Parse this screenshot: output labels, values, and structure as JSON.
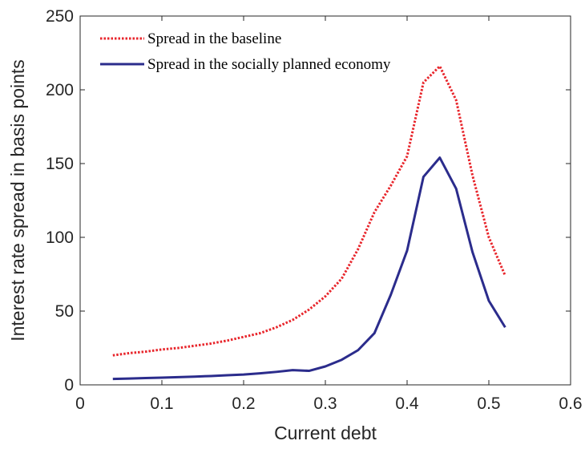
{
  "chart_data": {
    "type": "line",
    "x_label": "Current debt",
    "y_label": "Interest rate spread in basis points",
    "x": [
      0.04,
      0.06,
      0.08,
      0.1,
      0.12,
      0.14,
      0.16,
      0.18,
      0.2,
      0.22,
      0.24,
      0.26,
      0.28,
      0.3,
      0.32,
      0.34,
      0.36,
      0.38,
      0.4,
      0.42,
      0.44,
      0.46,
      0.48,
      0.5,
      0.52
    ],
    "series": [
      {
        "name": "Spread in the baseline",
        "color": "#e8262c",
        "dash": "dotted",
        "values": [
          20,
          21.5,
          22.5,
          24,
          25,
          26.5,
          28,
          30,
          32.5,
          35,
          39,
          44,
          51,
          60,
          72,
          92,
          117,
          135,
          155,
          205,
          216,
          193,
          142,
          100,
          74
        ]
      },
      {
        "name": "Spread in the socially planned economy",
        "color": "#2b2c8c",
        "dash": "solid",
        "values": [
          4,
          4.3,
          4.6,
          4.9,
          5.2,
          5.6,
          6,
          6.5,
          7,
          7.8,
          8.8,
          10,
          9.5,
          12.5,
          17,
          23.5,
          35,
          61,
          91,
          141,
          154,
          133,
          90,
          57,
          39
        ]
      }
    ],
    "xlim": [
      0,
      0.6
    ],
    "ylim": [
      0,
      250
    ],
    "xticks": [
      0,
      0.1,
      0.2,
      0.3,
      0.4,
      0.5,
      0.6
    ],
    "yticks": [
      0,
      50,
      100,
      150,
      200,
      250
    ],
    "grid": false,
    "legend": "upper left"
  }
}
